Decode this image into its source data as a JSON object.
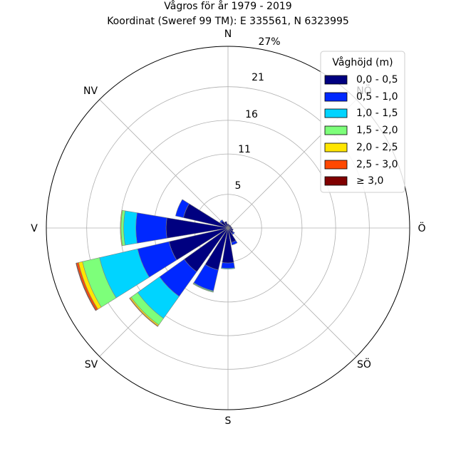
{
  "chart_data": {
    "type": "windrose",
    "title": "Vågros för år 1979 - 2019",
    "subtitle": "Koordinat (Sweref 99 TM): E 335561, N 6323995",
    "directions": [
      "N",
      "NÖ",
      "Ö",
      "SÖ",
      "S",
      "SV",
      "V",
      "NV"
    ],
    "ring_labels": [
      "5",
      "11",
      "16",
      "21",
      "27%"
    ],
    "r_max": 27,
    "legend_title": "Våghöjd (m)",
    "bins": [
      "0,0 - 0,5",
      "0,5 - 1,0",
      "1,0 - 1,5",
      "1,5 - 2,0",
      "2,0 - 2,5",
      "2,5 - 3,0",
      "≥ 3,0"
    ],
    "colors": [
      "#000080",
      "#0028ff",
      "#00d4ff",
      "#7dff7a",
      "#ffe600",
      "#ff4800",
      "#800000"
    ],
    "sectors": [
      {
        "angle": 0,
        "values": [
          0.6,
          0,
          0,
          0,
          0,
          0,
          0
        ]
      },
      {
        "angle": 22.5,
        "values": [
          0.5,
          0,
          0,
          0,
          0,
          0,
          0
        ]
      },
      {
        "angle": 45,
        "values": [
          0.5,
          0,
          0,
          0,
          0,
          0,
          0
        ]
      },
      {
        "angle": 67.5,
        "values": [
          0.5,
          0,
          0,
          0,
          0,
          0,
          0
        ]
      },
      {
        "angle": 90,
        "values": [
          0.6,
          0,
          0,
          0,
          0,
          0,
          0
        ]
      },
      {
        "angle": 112.5,
        "values": [
          0.8,
          0,
          0,
          0,
          0,
          0,
          0
        ]
      },
      {
        "angle": 135,
        "values": [
          1.0,
          0.2,
          0,
          0,
          0,
          0,
          0
        ]
      },
      {
        "angle": 157.5,
        "values": [
          2.2,
          0.4,
          0,
          0,
          0,
          0,
          0
        ]
      },
      {
        "angle": 180,
        "values": [
          5.2,
          0.8,
          0.1,
          0,
          0,
          0,
          0
        ]
      },
      {
        "angle": 202.5,
        "values": [
          6.4,
          3.2,
          0.1,
          0.1,
          0,
          0,
          0
        ]
      },
      {
        "angle": 225,
        "values": [
          8.0,
          4.5,
          4.0,
          1.2,
          0.2,
          0.1,
          0
        ]
      },
      {
        "angle": 247.5,
        "values": [
          9.0,
          4.8,
          5.8,
          2.6,
          0.6,
          0.3,
          0.1
        ]
      },
      {
        "angle": 270,
        "values": [
          9.2,
          4.5,
          1.8,
          0.4,
          0.1,
          0,
          0
        ]
      },
      {
        "angle": 292.5,
        "values": [
          6.8,
          1.2,
          0,
          0,
          0,
          0,
          0
        ]
      },
      {
        "angle": 315,
        "values": [
          1.3,
          0.2,
          0,
          0,
          0,
          0,
          0
        ]
      },
      {
        "angle": 337.5,
        "values": [
          1.0,
          0,
          0,
          0,
          0,
          0,
          0
        ]
      }
    ]
  }
}
